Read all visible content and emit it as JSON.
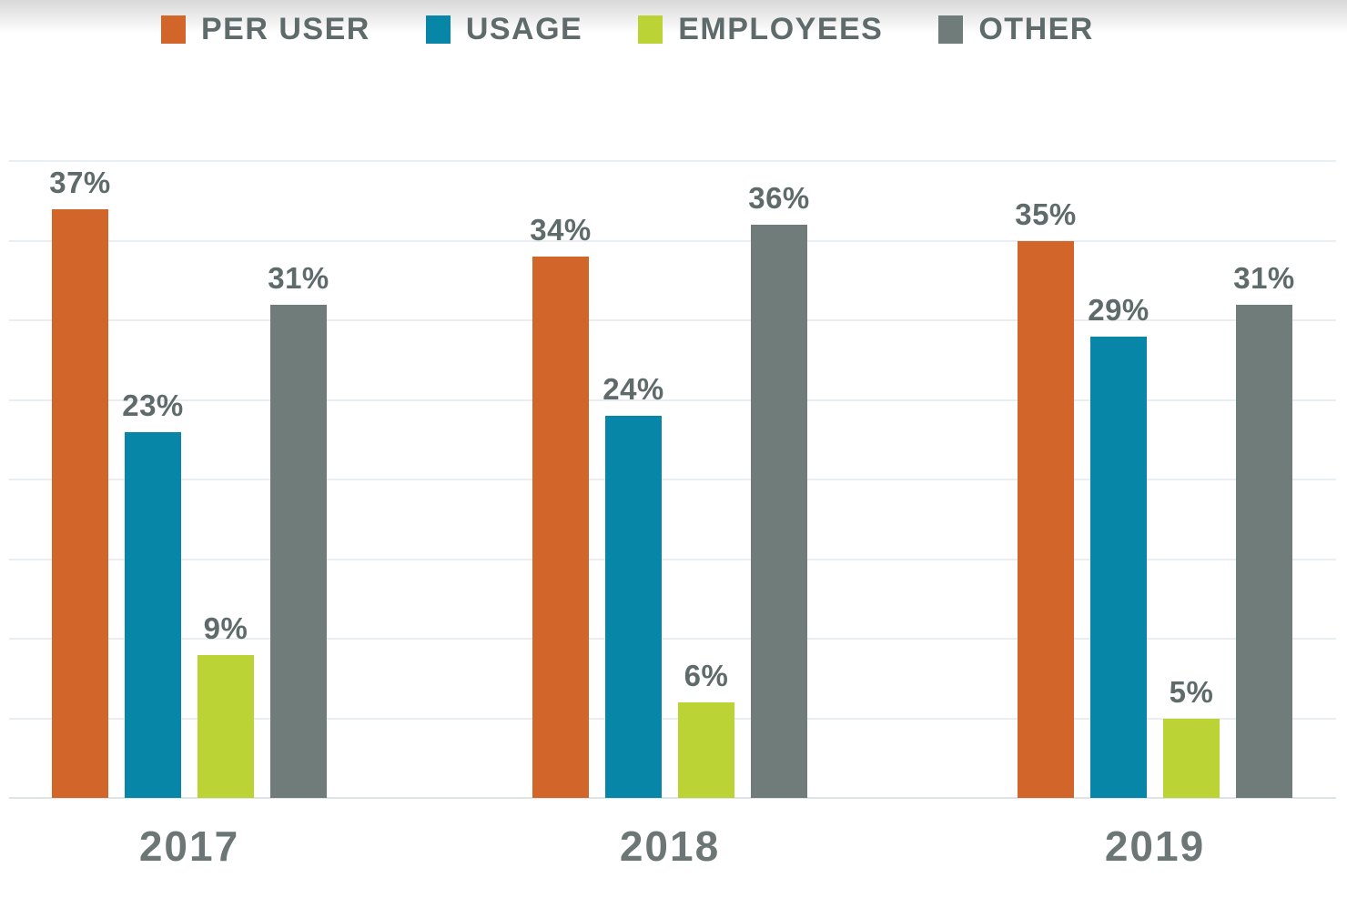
{
  "colors": {
    "per_user": "#D2652A",
    "usage": "#0886A7",
    "employees": "#BCD336",
    "other": "#6F7C7A",
    "label_text": "#5E6B6A",
    "axis_text": "#6B7675",
    "gridline": "#E9EEF2",
    "baseline": "#DDE3E7",
    "top_gradient_start": "#D8D8D8"
  },
  "chart_data": {
    "type": "bar",
    "title": "",
    "xlabel": "",
    "ylabel": "",
    "categories": [
      "2017",
      "2018",
      "2019"
    ],
    "series": [
      {
        "name": "PER USER",
        "color": "#D2652A",
        "values": [
          37,
          34,
          35
        ]
      },
      {
        "name": "USAGE",
        "color": "#0886A7",
        "values": [
          23,
          24,
          29
        ]
      },
      {
        "name": "EMPLOYEES",
        "color": "#BCD336",
        "values": [
          9,
          6,
          5
        ]
      },
      {
        "name": "OTHER",
        "color": "#6F7C7A",
        "values": [
          31,
          36,
          31
        ]
      }
    ],
    "data_labels": [
      "37%",
      "23%",
      "9%",
      "31%",
      "34%",
      "24%",
      "6%",
      "36%",
      "35%",
      "29%",
      "5%",
      "31%"
    ],
    "value_suffix": "%",
    "ylim": [
      0,
      40
    ],
    "gridline_step": 5,
    "grid": "horizontal-only",
    "y_axis_ticks_visible": false,
    "legend_position": "top",
    "legend_entries": [
      "PER USER",
      "USAGE",
      "EMPLOYEES",
      "OTHER"
    ]
  }
}
